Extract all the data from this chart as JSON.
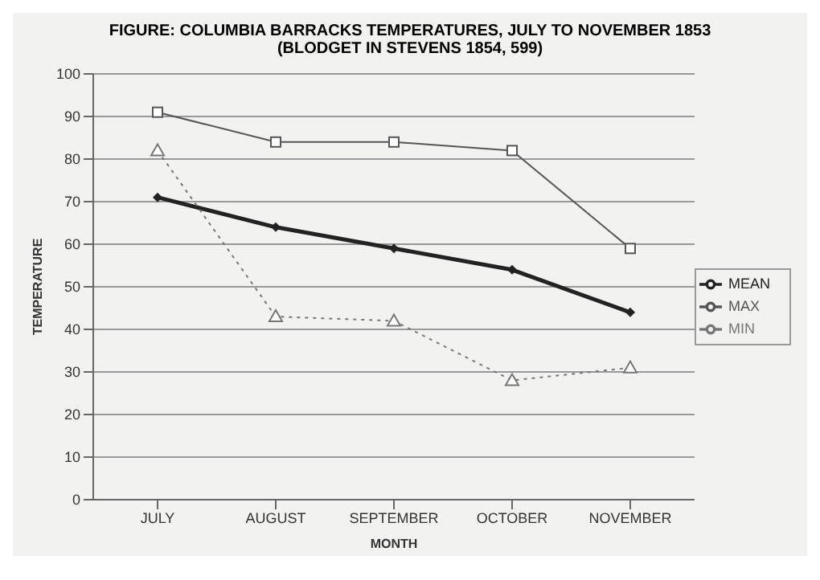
{
  "chart_data": {
    "type": "line",
    "title": "FIGURE: COLUMBIA BARRACKS TEMPERATURES, JULY TO NOVEMBER 1853 (BLODGET IN STEVENS 1854, 599)",
    "xlabel": "MONTH",
    "ylabel": "TEMPERATURE",
    "categories": [
      "JULY",
      "AUGUST",
      "SEPTEMBER",
      "OCTOBER",
      "NOVEMBER"
    ],
    "series": [
      {
        "name": "MEAN",
        "color": "#222222",
        "values": [
          71,
          64,
          59,
          54,
          44
        ],
        "marker": "diamond",
        "line_style": "solid"
      },
      {
        "name": "MAX",
        "color": "#555555",
        "values": [
          91,
          84,
          84,
          82,
          59
        ],
        "marker": "square",
        "line_style": "solid"
      },
      {
        "name": "MIN",
        "color": "#777777",
        "values": [
          82,
          43,
          42,
          28,
          31
        ],
        "marker": "triangle",
        "line_style": "dotted"
      }
    ],
    "ylim": [
      0,
      100
    ],
    "yticks": [
      0,
      10,
      20,
      30,
      40,
      50,
      60,
      70,
      80,
      90,
      100
    ],
    "grid": "y",
    "legend": "right"
  }
}
